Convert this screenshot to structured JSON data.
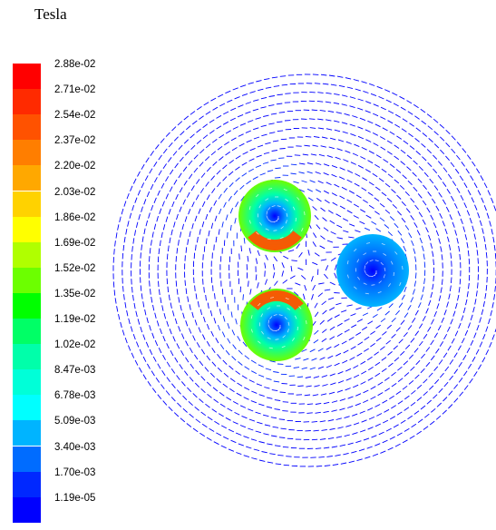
{
  "header": {
    "unit_label": "Tesla"
  },
  "legend": {
    "labels": [
      "2.88e-02",
      "2.71e-02",
      "2.54e-02",
      "2.37e-02",
      "2.20e-02",
      "2.03e-02",
      "1.86e-02",
      "1.69e-02",
      "1.52e-02",
      "1.35e-02",
      "1.19e-02",
      "1.02e-02",
      "8.47e-03",
      "6.78e-03",
      "5.09e-03",
      "3.40e-03",
      "1.70e-03",
      "1.19e-05"
    ],
    "colors": [
      "#ff0000",
      "#ff2a00",
      "#ff5200",
      "#ff7e00",
      "#ffa800",
      "#ffd200",
      "#ffff00",
      "#b0ff00",
      "#6cff00",
      "#00ff00",
      "#00ff66",
      "#00ffaa",
      "#00ffd8",
      "#00ffff",
      "#00b4ff",
      "#006cff",
      "#0028ff",
      "#0000ff"
    ]
  },
  "field": {
    "conductors": [
      {
        "name": "upper-left conductor",
        "peak_value": 0.0288
      },
      {
        "name": "lower-left conductor",
        "peak_value": 0.0288
      },
      {
        "name": "right conductor",
        "peak_value": 0.00678
      }
    ]
  }
}
